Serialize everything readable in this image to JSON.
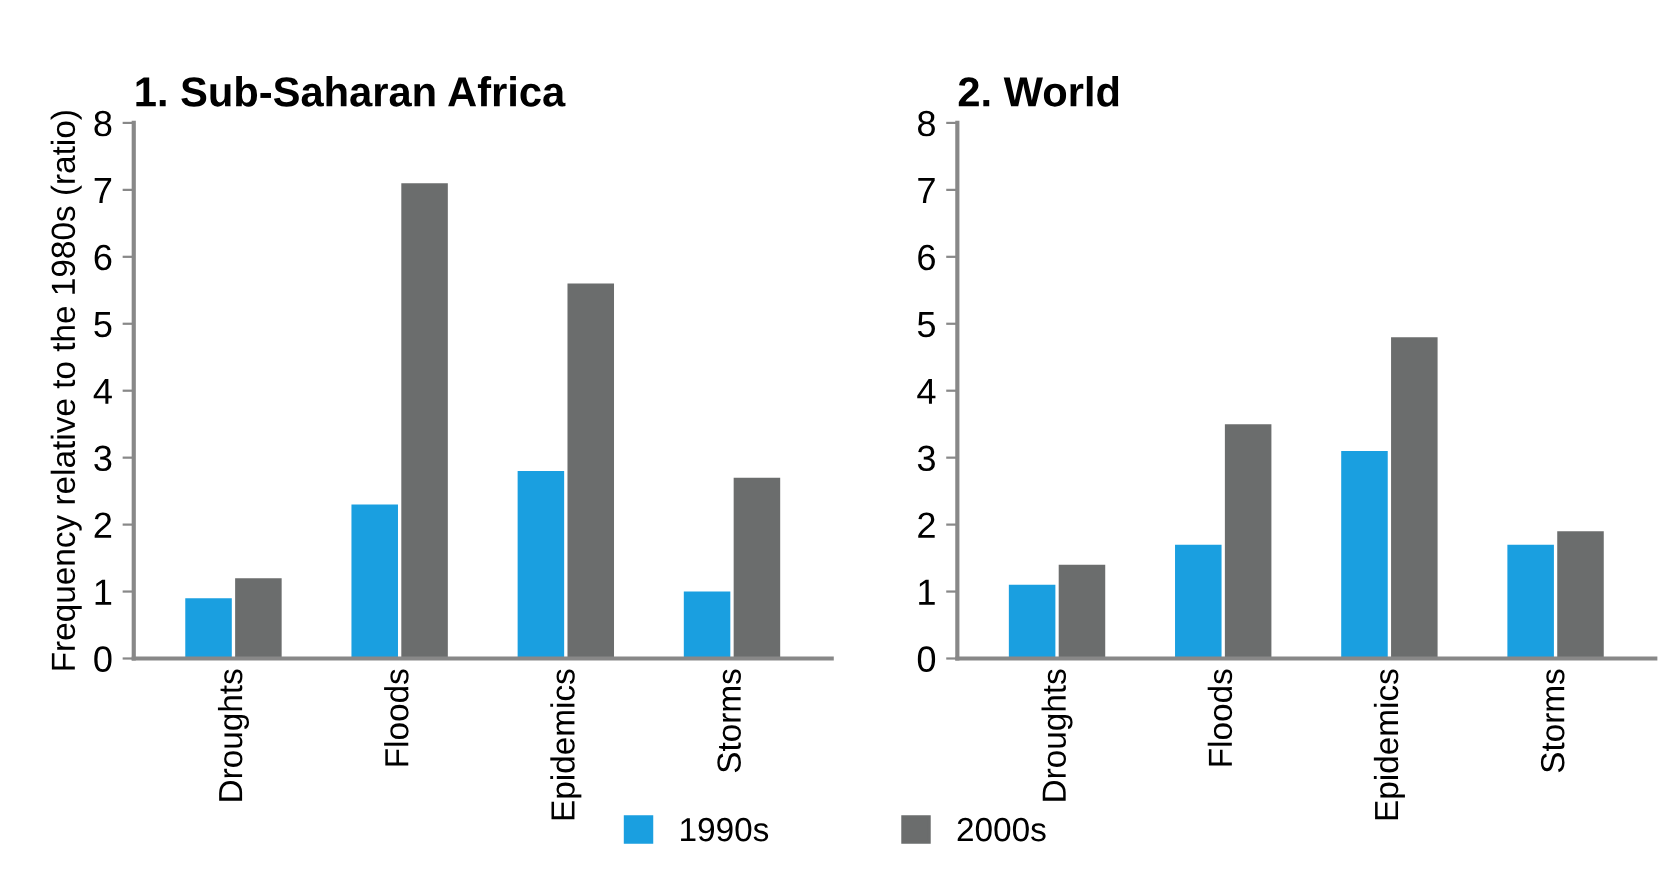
{
  "chart_data": [
    {
      "type": "bar",
      "title": "1. Sub-Saharan Africa",
      "ylabel": "Frequency relative to the 1980s (ratio)",
      "categories": [
        "Droughts",
        "Floods",
        "Epidemics",
        "Storms"
      ],
      "series": [
        {
          "name": "1990s",
          "color": "#1a9fe0",
          "values": [
            0.9,
            2.3,
            2.8,
            1.0
          ]
        },
        {
          "name": "2000s",
          "color": "#6b6d6d",
          "values": [
            1.2,
            7.1,
            5.6,
            2.7
          ]
        }
      ],
      "ylim": [
        0,
        8
      ],
      "yticks": [
        0,
        1,
        2,
        3,
        4,
        5,
        6,
        7,
        8
      ],
      "grid": false,
      "legend": "bottom"
    },
    {
      "type": "bar",
      "title": "2. World",
      "categories": [
        "Droughts",
        "Floods",
        "Epidemics",
        "Storms"
      ],
      "series": [
        {
          "name": "1990s",
          "color": "#1a9fe0",
          "values": [
            1.1,
            1.7,
            3.1,
            1.7
          ]
        },
        {
          "name": "2000s",
          "color": "#6b6d6d",
          "values": [
            1.4,
            3.5,
            4.8,
            1.9
          ]
        }
      ],
      "ylim": [
        0,
        8
      ],
      "yticks": [
        0,
        1,
        2,
        3,
        4,
        5,
        6,
        7,
        8
      ],
      "grid": false,
      "legend": "bottom"
    }
  ]
}
